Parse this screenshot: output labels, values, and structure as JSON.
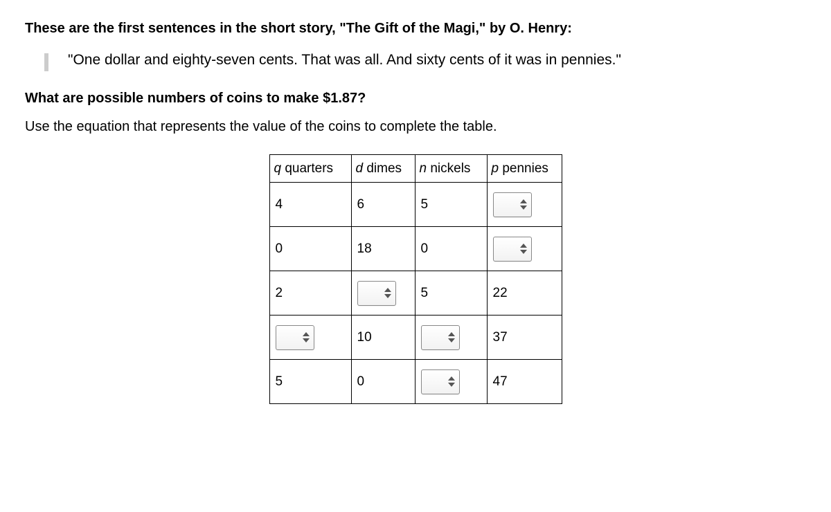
{
  "intro": "These are the first sentences in the short story, \"The Gift of the Magi,\" by O. Henry:",
  "quote": "\"One dollar and eighty-seven cents. That was all. And sixty cents of it was in pennies.\"",
  "question": "What are possible numbers of coins to make $1.87?",
  "instruction": "Use the equation that represents the value of the coins to complete the table.",
  "table": {
    "headers": {
      "q": {
        "var": "q",
        "label": " quarters"
      },
      "d": {
        "var": "d",
        "label": " dimes"
      },
      "n": {
        "var": "n",
        "label": " nickels"
      },
      "p": {
        "var": "p",
        "label": " pennies"
      }
    },
    "column_widths": {
      "q": 118,
      "d": 92,
      "n": 104,
      "p": 108
    },
    "rows": [
      {
        "q": {
          "type": "text",
          "v": "4"
        },
        "d": {
          "type": "text",
          "v": "6"
        },
        "n": {
          "type": "text",
          "v": "5"
        },
        "p": {
          "type": "input",
          "v": ""
        }
      },
      {
        "q": {
          "type": "text",
          "v": "0"
        },
        "d": {
          "type": "text",
          "v": "18"
        },
        "n": {
          "type": "text",
          "v": "0"
        },
        "p": {
          "type": "input",
          "v": ""
        }
      },
      {
        "q": {
          "type": "text",
          "v": "2"
        },
        "d": {
          "type": "input",
          "v": ""
        },
        "n": {
          "type": "text",
          "v": "5"
        },
        "p": {
          "type": "text",
          "v": "22"
        }
      },
      {
        "q": {
          "type": "input",
          "v": ""
        },
        "d": {
          "type": "text",
          "v": "10"
        },
        "n": {
          "type": "input",
          "v": ""
        },
        "p": {
          "type": "text",
          "v": "37"
        }
      },
      {
        "q": {
          "type": "text",
          "v": "5"
        },
        "d": {
          "type": "text",
          "v": "0"
        },
        "n": {
          "type": "input",
          "v": ""
        },
        "p": {
          "type": "text",
          "v": "47"
        }
      }
    ]
  },
  "styling": {
    "border_color": "#000000",
    "stepper_border": "#888888",
    "stepper_arrow": "#555555",
    "cell_fontsize": 19,
    "body_fontsize": 20
  }
}
